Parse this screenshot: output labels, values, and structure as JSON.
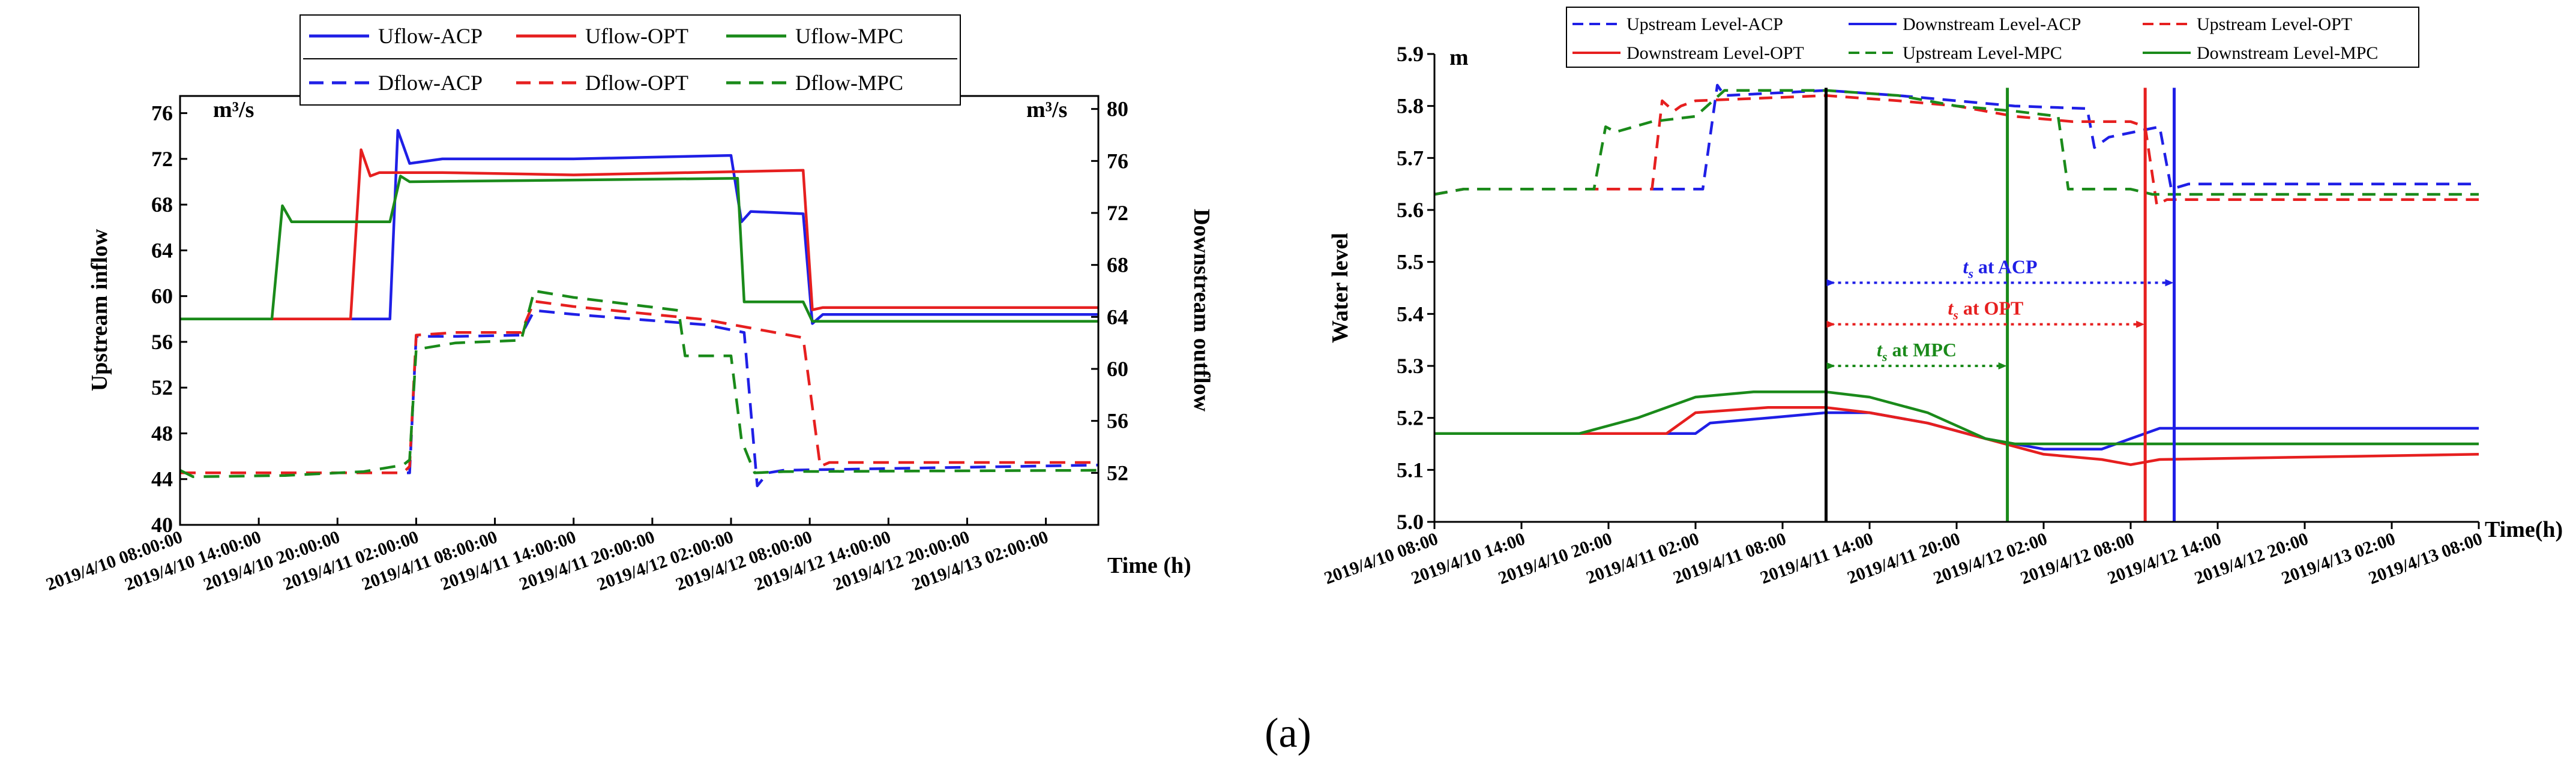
{
  "caption": "(a)",
  "colors": {
    "acp": "#1f1fe6",
    "opt": "#e61f1f",
    "mpc": "#1a8a1a",
    "axis": "#000000"
  },
  "chart_data": [
    {
      "type": "line",
      "title": "",
      "xlabel": "Time (h)",
      "ylabel": "Upstream inflow",
      "y2label": "Downstream outflow",
      "y_unit": "m³/s",
      "y2_unit": "m³/s",
      "xlim": [
        0,
        70
      ],
      "ylim": [
        40,
        77.5
      ],
      "y2lim": [
        48,
        81
      ],
      "yticks": [
        40,
        44,
        48,
        52,
        56,
        60,
        64,
        68,
        72,
        76
      ],
      "y2ticks": [
        52,
        56,
        60,
        64,
        68,
        72,
        76,
        80
      ],
      "x_ticks": [
        0,
        6,
        12,
        18,
        24,
        30,
        36,
        42,
        48,
        54,
        60,
        66
      ],
      "x_tick_labels": [
        "2019/4/10 08:00:00",
        "2019/4/10 14:00:00",
        "2019/4/10 20:00:00",
        "2019/4/11 02:00:00",
        "2019/4/11 08:00:00",
        "2019/4/11 14:00:00",
        "2019/4/11 20:00:00",
        "2019/4/12 02:00:00",
        "2019/4/12 08:00:00",
        "2019/4/12 14:00:00",
        "2019/4/12 20:00:00",
        "2019/4/13 02:00:00"
      ],
      "legend": [
        "Uflow-ACP",
        "Uflow-OPT",
        "Uflow-MPC",
        "Dflow-ACP",
        "Dflow-OPT",
        "Dflow-MPC"
      ],
      "series": [
        {
          "name": "Uflow-ACP",
          "color": "acp",
          "dash": "solid",
          "axis": "left",
          "x": [
            0,
            15,
            16,
            16.6,
            17.5,
            20,
            30,
            42,
            42.8,
            43.5,
            47.5,
            48.2,
            49,
            70
          ],
          "y": [
            58,
            58,
            58,
            74.5,
            71.6,
            72,
            72,
            72.3,
            66.5,
            67.4,
            67.2,
            57.6,
            58.4,
            58.4
          ]
        },
        {
          "name": "Uflow-OPT",
          "color": "opt",
          "dash": "solid",
          "axis": "left",
          "x": [
            0,
            13,
            13.8,
            14.5,
            15.2,
            20,
            30,
            47.5,
            48.2,
            49,
            70
          ],
          "y": [
            58,
            58,
            72.8,
            70.5,
            70.8,
            70.8,
            70.6,
            71,
            58.8,
            59,
            59
          ]
        },
        {
          "name": "Uflow-MPC",
          "color": "mpc",
          "dash": "solid",
          "axis": "left",
          "x": [
            0,
            7,
            7.8,
            8.5,
            16,
            16.8,
            17.5,
            42.5,
            43,
            47.5,
            48.2,
            70
          ],
          "y": [
            58,
            58,
            67.9,
            66.5,
            66.5,
            70.5,
            70,
            70.3,
            59.5,
            59.5,
            57.8,
            57.8
          ]
        },
        {
          "name": "Dflow-ACP",
          "color": "acp",
          "dash": "dash",
          "axis": "right",
          "x": [
            0,
            17,
            17.5,
            18,
            21,
            26,
            27,
            30,
            40,
            43,
            44,
            44.8,
            46,
            70
          ],
          "y": [
            52,
            52,
            52,
            62.5,
            62.5,
            62.6,
            64.5,
            64.2,
            63.4,
            62.8,
            51,
            52,
            52.2,
            52.6
          ]
        },
        {
          "name": "Dflow-OPT",
          "color": "opt",
          "dash": "dash",
          "axis": "right",
          "x": [
            0,
            17,
            17.5,
            18,
            21,
            26,
            27,
            30,
            40,
            47.5,
            48.8,
            49.5,
            70
          ],
          "y": [
            52,
            52,
            52.5,
            62.6,
            62.8,
            62.8,
            65.2,
            64.8,
            63.8,
            62.4,
            52.5,
            52.8,
            52.8
          ]
        },
        {
          "name": "Dflow-MPC",
          "color": "mpc",
          "dash": "dash",
          "axis": "right",
          "x": [
            0,
            1,
            8,
            14,
            17,
            17.5,
            18,
            21,
            26,
            27,
            30,
            38,
            38.5,
            42,
            42.8,
            43.8,
            46,
            70
          ],
          "y": [
            52.2,
            51.7,
            51.8,
            52.1,
            52.6,
            53,
            61.5,
            62,
            62.2,
            66,
            65.5,
            64.5,
            61,
            61,
            54.5,
            52,
            52.1,
            52.2
          ]
        }
      ]
    },
    {
      "type": "line",
      "title": "",
      "xlabel": "Time(h)",
      "ylabel": "Water level",
      "y_unit": "m",
      "xlim": [
        0,
        72
      ],
      "ylim": [
        5.0,
        5.9
      ],
      "yticks": [
        "5.0",
        "5.1",
        "5.2",
        "5.3",
        "5.4",
        "5.5",
        "5.6",
        "5.7",
        "5.8",
        "5.9"
      ],
      "x_ticks": [
        0,
        6,
        12,
        18,
        24,
        30,
        36,
        42,
        48,
        54,
        60,
        66,
        72
      ],
      "x_tick_labels": [
        "2019/4/10 08:00",
        "2019/4/10 14:00",
        "2019/4/10 20:00",
        "2019/4/11 02:00",
        "2019/4/11 08:00",
        "2019/4/11 14:00",
        "2019/4/11 20:00",
        "2019/4/12 02:00",
        "2019/4/12 08:00",
        "2019/4/12 14:00",
        "2019/4/12 20:00",
        "2019/4/13 02:00",
        "2019/4/13 08:00"
      ],
      "legend": [
        "Upstream Level-ACP",
        "Downstream Level-ACP",
        "Upstream Level-OPT",
        "Downstream Level-OPT",
        "Upstream Level-MPC",
        "Downstream Level-MPC"
      ],
      "series": [
        {
          "name": "Upstream Level-ACP",
          "color": "acp",
          "dash": "dash",
          "x": [
            0,
            2,
            18.5,
            19.5,
            20,
            27,
            32,
            36,
            40,
            45,
            45.5,
            46.5,
            50,
            50.8,
            52,
            72
          ],
          "y": [
            5.63,
            5.64,
            5.64,
            5.84,
            5.82,
            5.83,
            5.82,
            5.81,
            5.8,
            5.795,
            5.72,
            5.74,
            5.76,
            5.64,
            5.65,
            5.65
          ]
        },
        {
          "name": "Upstream Level-OPT",
          "color": "opt",
          "dash": "dash",
          "x": [
            0,
            2,
            15,
            15.7,
            16.5,
            17,
            18,
            27,
            32,
            36,
            40,
            44,
            48,
            49,
            49.8,
            50.5,
            72
          ],
          "y": [
            5.63,
            5.64,
            5.64,
            5.81,
            5.79,
            5.8,
            5.81,
            5.82,
            5.81,
            5.8,
            5.78,
            5.77,
            5.77,
            5.76,
            5.61,
            5.62,
            5.62
          ]
        },
        {
          "name": "Upstream Level-MPC",
          "color": "mpc",
          "dash": "dash",
          "x": [
            0,
            2,
            11,
            11.8,
            12.5,
            15,
            18,
            20,
            27,
            32,
            36,
            40,
            43,
            43.7,
            44.5,
            48,
            49.5,
            72
          ],
          "y": [
            5.63,
            5.64,
            5.64,
            5.76,
            5.75,
            5.77,
            5.78,
            5.83,
            5.83,
            5.82,
            5.8,
            5.79,
            5.78,
            5.64,
            5.64,
            5.64,
            5.63,
            5.63
          ]
        },
        {
          "name": "Downstream Level-ACP",
          "color": "acp",
          "dash": "solid",
          "x": [
            0,
            10,
            18,
            19,
            23,
            27,
            30,
            34,
            38,
            42,
            46,
            48,
            50,
            51,
            72
          ],
          "y": [
            5.17,
            5.17,
            5.17,
            5.19,
            5.2,
            5.21,
            5.21,
            5.19,
            5.16,
            5.14,
            5.14,
            5.16,
            5.18,
            5.18,
            5.18
          ]
        },
        {
          "name": "Downstream Level-OPT",
          "color": "opt",
          "dash": "solid",
          "x": [
            0,
            10,
            16,
            18,
            23,
            27,
            30,
            34,
            38,
            42,
            46,
            48,
            50,
            72
          ],
          "y": [
            5.17,
            5.17,
            5.17,
            5.21,
            5.22,
            5.22,
            5.21,
            5.19,
            5.16,
            5.13,
            5.12,
            5.11,
            5.12,
            5.13
          ]
        },
        {
          "name": "Downstream Level-MPC",
          "color": "mpc",
          "dash": "solid",
          "x": [
            0,
            10,
            14,
            18,
            22,
            27,
            30,
            34,
            38,
            40,
            42,
            72
          ],
          "y": [
            5.17,
            5.17,
            5.2,
            5.24,
            5.25,
            5.25,
            5.24,
            5.21,
            5.16,
            5.15,
            5.15,
            5.15
          ]
        }
      ],
      "vlines": [
        {
          "x": 27,
          "color": "axis"
        },
        {
          "x": 51,
          "color": "acp"
        },
        {
          "x": 49,
          "color": "opt"
        },
        {
          "x": 39.5,
          "color": "mpc"
        }
      ],
      "annotations": [
        {
          "label": "ts at ACP",
          "text_main": "t",
          "text_sub": "s",
          "text_rest": " at ACP",
          "x_from": 27,
          "x_to": 51,
          "y": 5.46,
          "color": "acp"
        },
        {
          "label": "ts at OPT",
          "text_main": "t",
          "text_sub": "s",
          "text_rest": " at OPT",
          "x_from": 27,
          "x_to": 49,
          "y": 5.38,
          "color": "opt"
        },
        {
          "label": "ts at MPC",
          "text_main": "t",
          "text_sub": "s",
          "text_rest": " at MPC",
          "x_from": 27,
          "x_to": 39.5,
          "y": 5.3,
          "color": "mpc"
        }
      ]
    }
  ]
}
